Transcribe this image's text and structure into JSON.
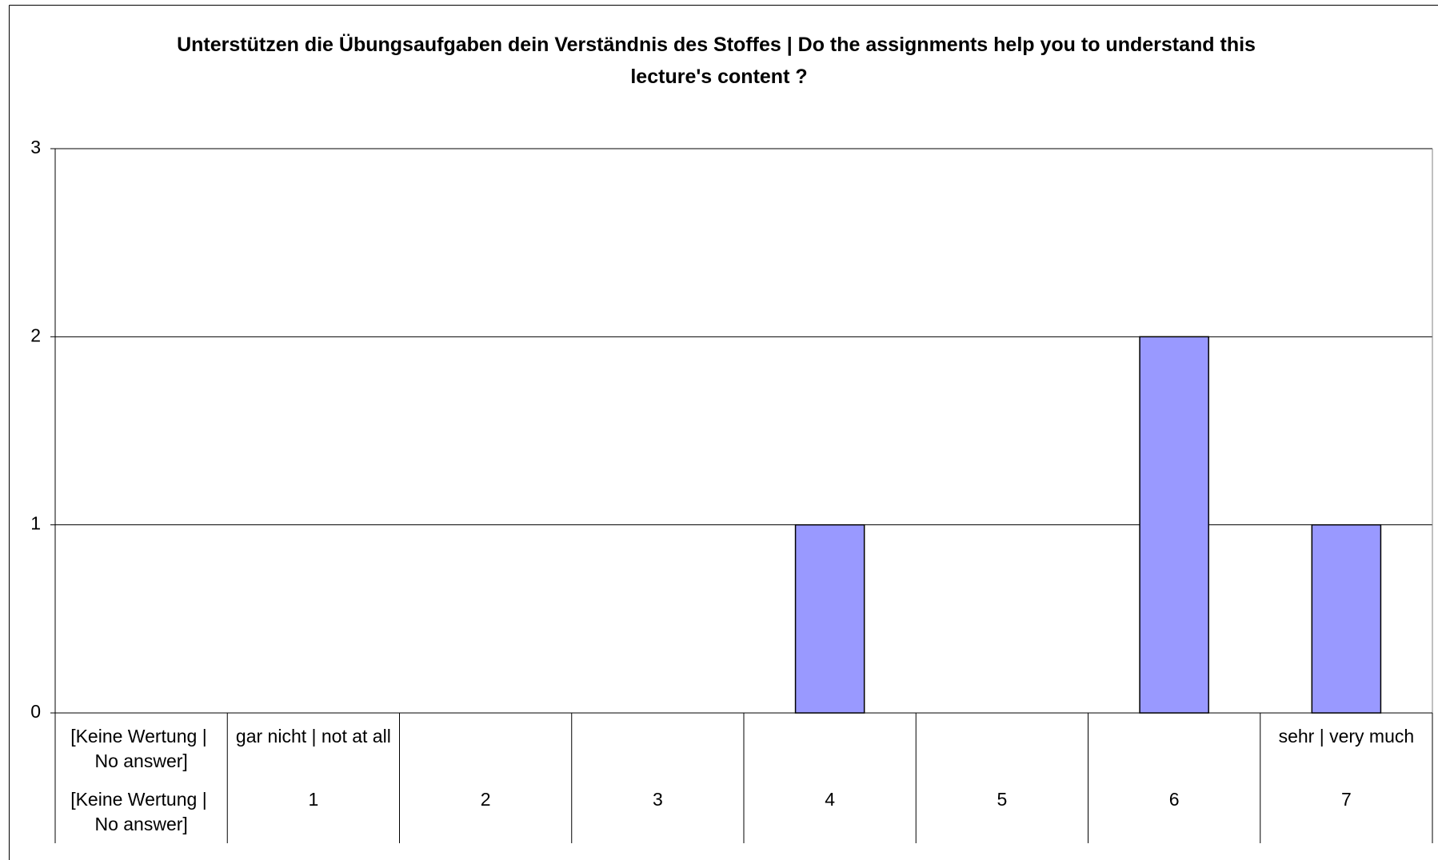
{
  "chart_data": {
    "type": "bar",
    "title": "Unterstützen die Übungsaufgaben dein Verständnis des Stoffes | Do the assignments help you to understand this lecture's content ?",
    "categories": [
      "[Keine Wertung | No answer]",
      "1",
      "2",
      "3",
      "4",
      "5",
      "6",
      "7"
    ],
    "category_labels": [
      "[Keine Wertung | No answer]",
      "gar nicht | not at all",
      null,
      null,
      null,
      null,
      null,
      "sehr | very much"
    ],
    "values": [
      0,
      0,
      0,
      0,
      1,
      0,
      2,
      1
    ],
    "color": "#9999ff",
    "ylim": [
      0,
      3
    ],
    "yticks": [
      0,
      1,
      2,
      3
    ],
    "grid": true
  }
}
